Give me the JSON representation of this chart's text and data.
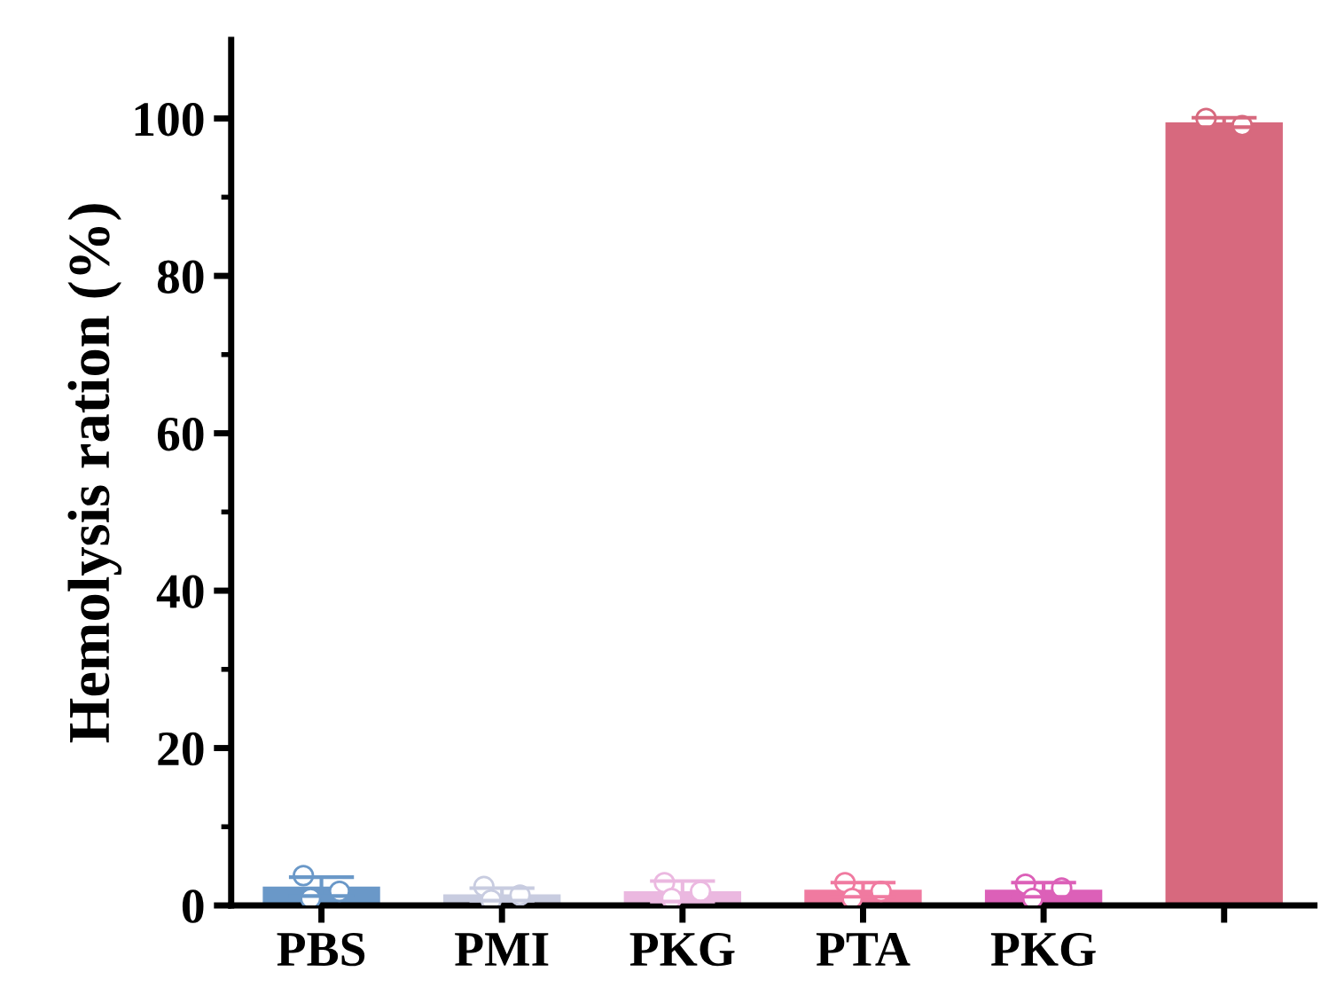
{
  "chart_data": {
    "type": "bar",
    "ylabel": "Hemolysis ration (%)",
    "categories": [
      "PBS",
      "PMI",
      "PKG",
      "PTA",
      "PKG",
      null
    ],
    "series": [
      {
        "values": [
          2.4,
          1.4,
          1.8,
          2.0,
          2.0,
          99.5
        ],
        "errors": [
          1.2,
          0.8,
          1.3,
          0.9,
          0.9,
          0.6
        ],
        "colors": [
          "#6a98c8",
          "#c8cce0",
          "#ebb8e0",
          "#f07aa0",
          "#dc60b8",
          "#d7697e"
        ]
      },
      {
        "type": "scatter",
        "values": [
          3.8,
          2.4,
          2.9,
          2.9,
          2.7,
          100.0
        ]
      },
      {
        "type": "scatter",
        "values": [
          1.8,
          1.3,
          1.8,
          1.8,
          2.2,
          99.1
        ]
      },
      {
        "type": "scatter",
        "values": [
          0.9,
          0.7,
          0.9,
          0.9,
          0.9,
          null
        ]
      }
    ],
    "ylim": [
      0,
      110
    ],
    "yticks": [
      0,
      20,
      40,
      60,
      80,
      100
    ],
    "grid": false,
    "legend": false,
    "marker": "circle"
  }
}
